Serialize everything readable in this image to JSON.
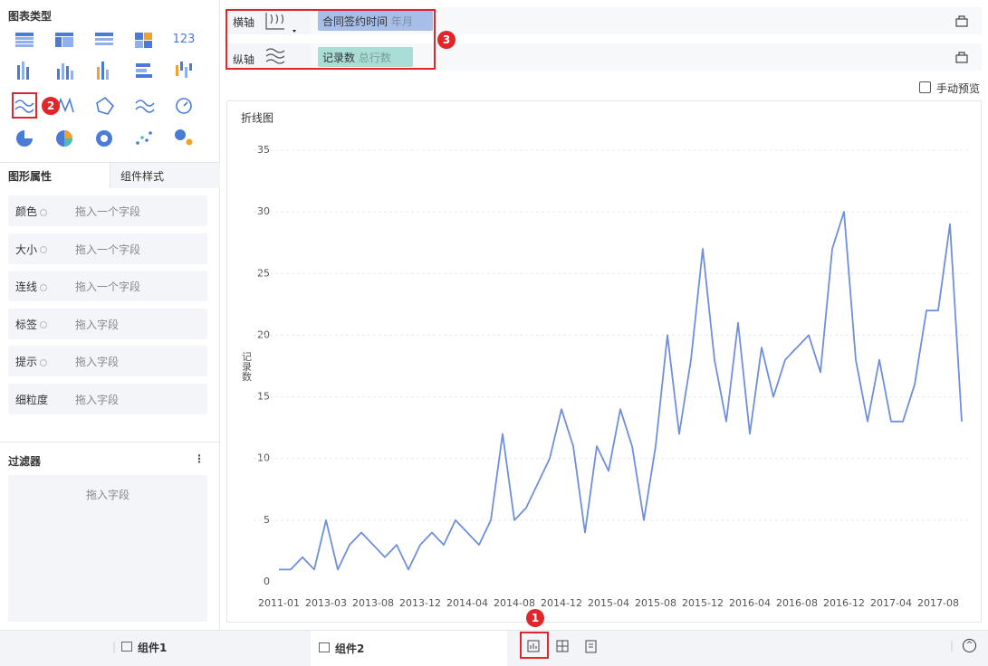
{
  "sidebar": {
    "chart_type_title": "图表类型",
    "number_icon_label": "123",
    "icon_badge": "2",
    "tabs": [
      "图形属性",
      "组件样式"
    ],
    "properties": [
      {
        "name": "颜色",
        "placeholder": "拖入一个字段"
      },
      {
        "name": "大小",
        "placeholder": "拖入一个字段"
      },
      {
        "name": "连线",
        "placeholder": "拖入一个字段"
      },
      {
        "name": "标签",
        "placeholder": "拖入字段"
      },
      {
        "name": "提示",
        "placeholder": "拖入字段"
      },
      {
        "name": "细粒度",
        "placeholder": "拖入字段"
      }
    ],
    "filter_title": "过滤器",
    "filter_placeholder": "拖入字段"
  },
  "axes": {
    "x_label": "横轴",
    "x_field": "合同签约时间",
    "x_field_sub": "年月",
    "y_label": "纵轴",
    "y_field": "记录数",
    "y_field_sub": "总行数",
    "badge": "3"
  },
  "manual_preview": "手动预览",
  "chart_data": {
    "type": "line",
    "title": "折线图",
    "y_label": "记录数",
    "categories": [
      "2011-01",
      null,
      null,
      null,
      "2013-03",
      null,
      null,
      null,
      "2013-08",
      null,
      null,
      null,
      "2013-12",
      null,
      null,
      null,
      "2014-04",
      null,
      null,
      null,
      "2014-08",
      null,
      null,
      null,
      "2014-12",
      null,
      null,
      null,
      "2015-04",
      null,
      null,
      null,
      "2015-08",
      null,
      null,
      null,
      "2015-12",
      null,
      null,
      null,
      "2016-04",
      null,
      null,
      null,
      "2016-08",
      null,
      null,
      null,
      "2016-12",
      null,
      null,
      null,
      "2017-04",
      null,
      null,
      null,
      "2017-08",
      null,
      null
    ],
    "values": [
      1,
      1,
      2,
      1,
      5,
      1,
      3,
      4,
      3,
      2,
      3,
      1,
      3,
      4,
      3,
      5,
      4,
      3,
      5,
      12,
      5,
      6,
      8,
      10,
      14,
      11,
      4,
      11,
      9,
      14,
      11,
      5,
      11,
      20,
      12,
      18,
      27,
      18,
      13,
      21,
      12,
      19,
      15,
      18,
      19,
      20,
      17,
      27,
      30,
      18,
      13,
      18,
      13,
      13,
      16,
      22,
      22,
      29,
      13
    ],
    "color": "#6f8fdd",
    "ylim": [
      0,
      35
    ],
    "yticks": [
      0,
      5,
      10,
      15,
      20,
      25,
      30,
      35
    ],
    "grid": true
  },
  "bottom_tabs": [
    "组件1",
    "组件2"
  ],
  "bottom_badge": "1"
}
